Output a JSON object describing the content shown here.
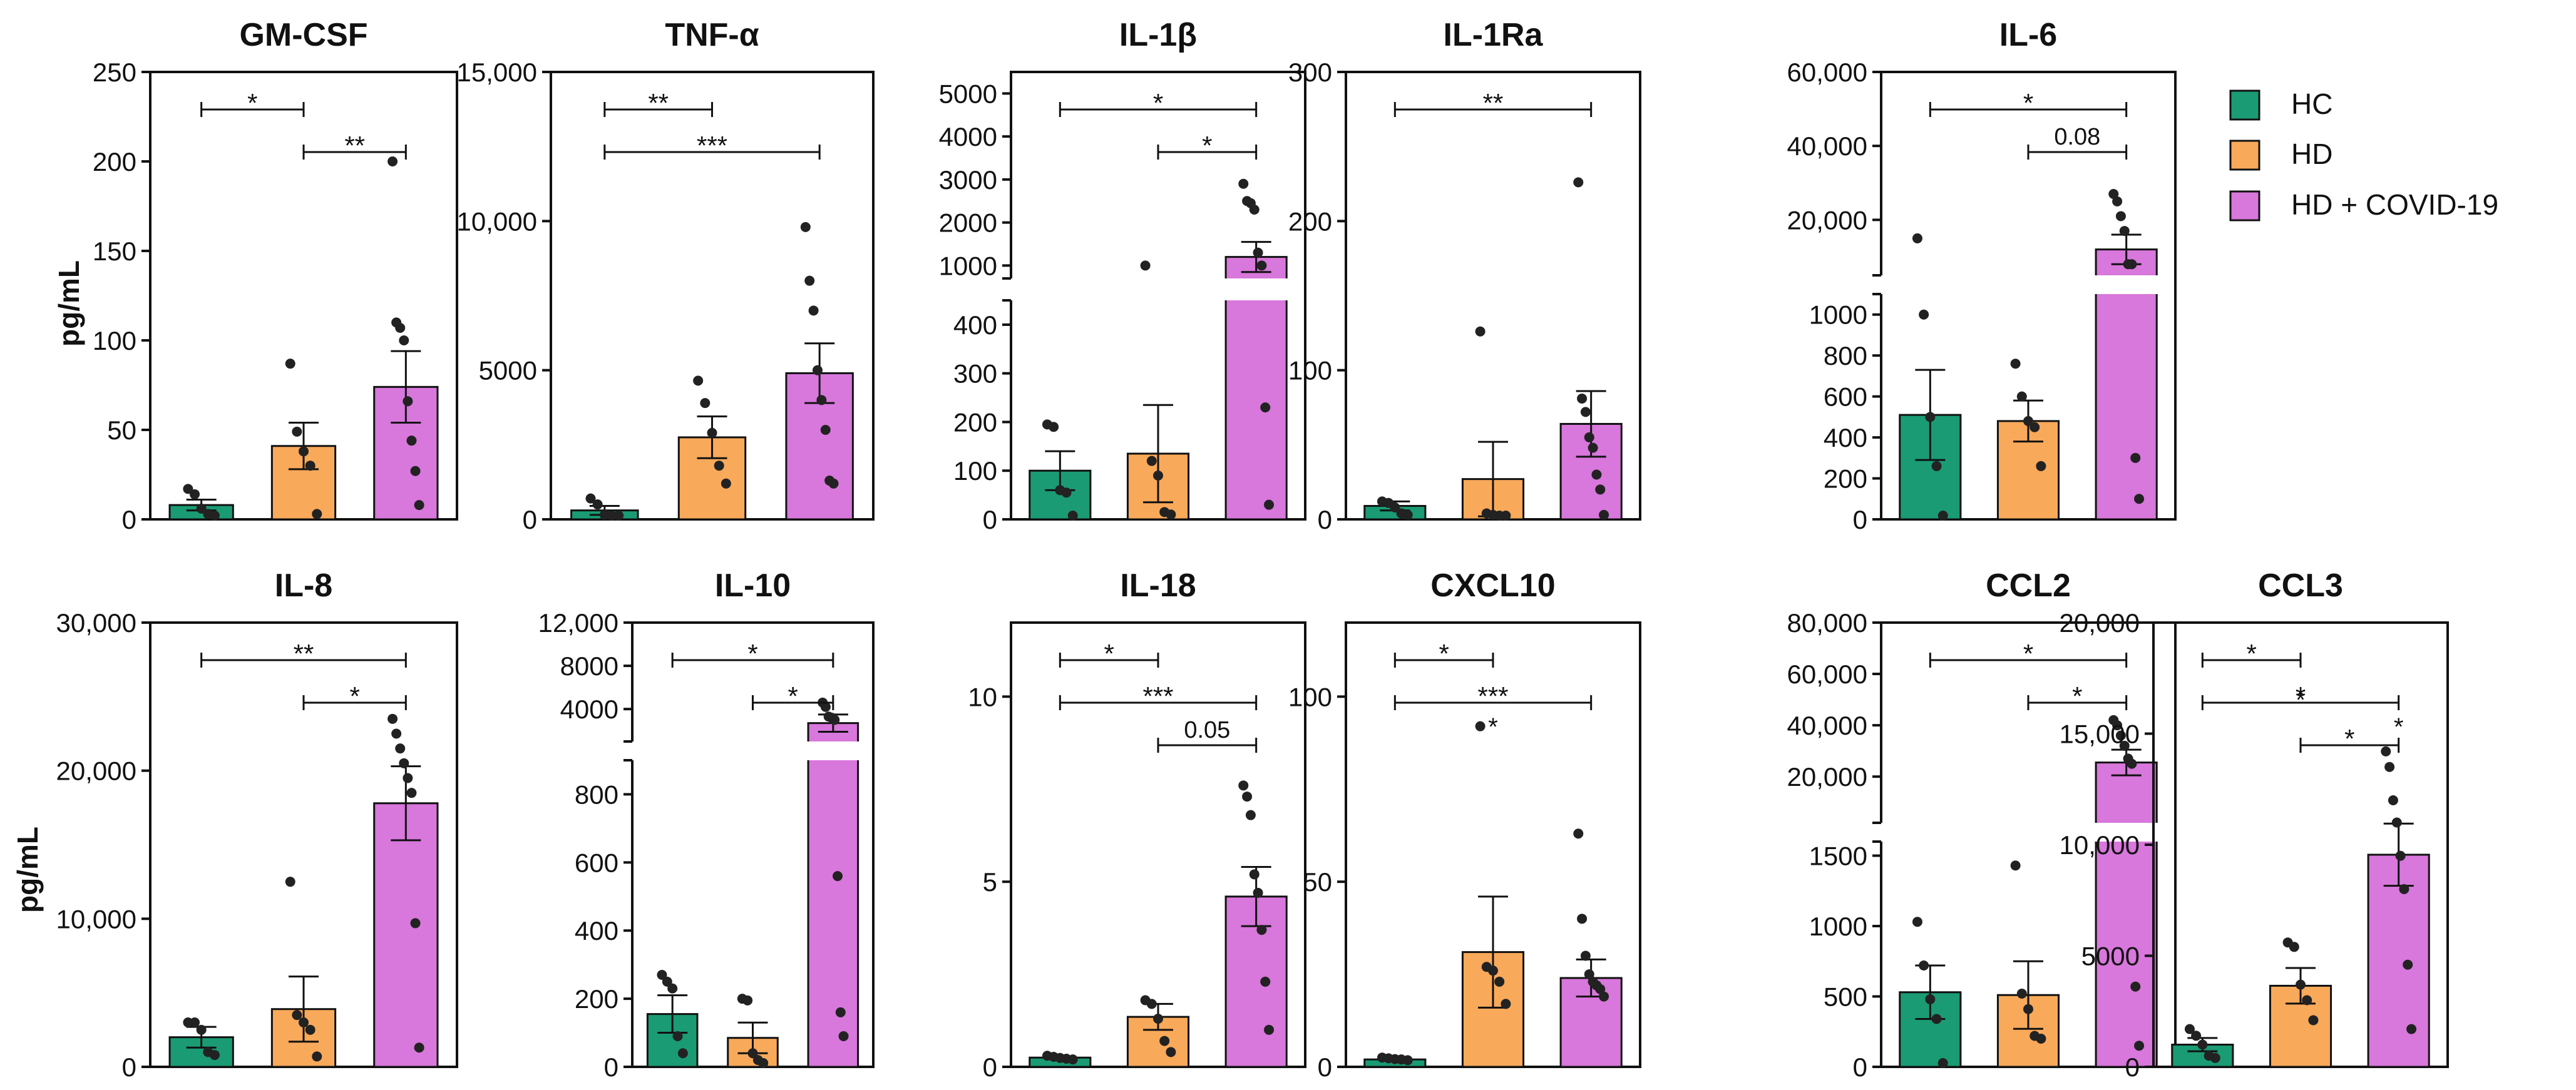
{
  "figure": {
    "ylabel": "pg/mL",
    "legend": {
      "placement": "top-right",
      "items": [
        {
          "label": "HC",
          "color": "#1a9b74"
        },
        {
          "label": "HD",
          "color": "#f9a95a"
        },
        {
          "label": "HD + COVID-19",
          "color": "#d877dc"
        }
      ]
    }
  },
  "chart_data": [
    {
      "type": "bar",
      "title": "GM-CSF",
      "categories": [
        "HC",
        "HD",
        "HD + COVID-19"
      ],
      "ylim": [
        0,
        250
      ],
      "ticks": [
        "0",
        "50",
        "100",
        "150",
        "200",
        "250"
      ],
      "series": [
        {
          "mean": 8,
          "sem": 3,
          "points": [
            17,
            14,
            6,
            3,
            2
          ]
        },
        {
          "mean": 41,
          "sem": 13,
          "points": [
            87,
            49,
            38,
            30,
            3
          ]
        },
        {
          "mean": 74,
          "sem": 20,
          "points": [
            200,
            110,
            107,
            100,
            66,
            44,
            27,
            8
          ]
        }
      ],
      "annotations": [
        {
          "from": 0,
          "to": 1,
          "label": "*"
        },
        {
          "from": 1,
          "to": 2,
          "label": "**"
        }
      ]
    },
    {
      "type": "bar",
      "title": "TNF-α",
      "categories": [
        "HC",
        "HD",
        "HD + COVID-19"
      ],
      "ylim": [
        0,
        15000
      ],
      "ticks": [
        "0",
        "5000",
        "10,000",
        "15,000"
      ],
      "series": [
        {
          "mean": 300,
          "sem": 150,
          "points": [
            700,
            500,
            150,
            100,
            50
          ]
        },
        {
          "mean": 2750,
          "sem": 700,
          "points": [
            4650,
            3900,
            2900,
            1800,
            1200
          ]
        },
        {
          "mean": 4900,
          "sem": 1000,
          "points": [
            9800,
            8000,
            7000,
            5000,
            4000,
            3000,
            1300,
            1200
          ]
        }
      ],
      "annotations": [
        {
          "from": 0,
          "to": 1,
          "label": "**"
        },
        {
          "from": 0,
          "to": 2,
          "label": "***"
        }
      ]
    },
    {
      "type": "bar",
      "title": "IL-1β",
      "categories": [
        "HC",
        "HD",
        "HD + COVID-19"
      ],
      "axis_break": {
        "low_max": 450,
        "high_min": 700,
        "high_max": 5500
      },
      "ticks": [
        "0",
        "100",
        "200",
        "300",
        "400",
        "1000",
        "2000",
        "3000",
        "4000",
        "5000"
      ],
      "series": [
        {
          "mean": 100,
          "sem": 40,
          "points": [
            195,
            190,
            60,
            55,
            5
          ]
        },
        {
          "mean": 135,
          "sem": 100,
          "points": [
            1000,
            120,
            90,
            15,
            10
          ]
        },
        {
          "mean": 1200,
          "sem": 350,
          "points": [
            2900,
            2500,
            2450,
            2300,
            1300,
            1000,
            230,
            30
          ]
        }
      ],
      "annotations": [
        {
          "from": 0,
          "to": 2,
          "label": "*"
        },
        {
          "from": 1,
          "to": 2,
          "label": "*"
        }
      ]
    },
    {
      "type": "bar",
      "title": "IL-1Ra",
      "categories": [
        "HC",
        "HD",
        "HD + COVID-19"
      ],
      "ylim": [
        0,
        300
      ],
      "ticks": [
        "0",
        "100",
        "200",
        "300"
      ],
      "series": [
        {
          "mean": 9,
          "sem": 3,
          "points": [
            12,
            11,
            8,
            4,
            3
          ]
        },
        {
          "mean": 27,
          "sem": 25,
          "points": [
            126,
            4,
            3,
            2,
            1
          ]
        },
        {
          "mean": 64,
          "sem": 22,
          "points": [
            226,
            81,
            72,
            55,
            48,
            30,
            20,
            3
          ]
        }
      ],
      "annotations": [
        {
          "from": 0,
          "to": 2,
          "label": "**"
        }
      ]
    },
    {
      "type": "bar",
      "title": "IL-6",
      "categories": [
        "HC",
        "HD",
        "HD + COVID-19"
      ],
      "axis_break": {
        "low_max": 1100,
        "high_min": 5000,
        "high_max": 60000
      },
      "ticks": [
        "0",
        "200",
        "400",
        "600",
        "800",
        "1000",
        "20,000",
        "40,000",
        "60,000"
      ],
      "series": [
        {
          "mean": 510,
          "sem": 220,
          "points": [
            15000,
            1000,
            500,
            260,
            10
          ]
        },
        {
          "mean": 480,
          "sem": 100,
          "points": [
            760,
            600,
            480,
            450,
            260
          ]
        },
        {
          "mean": 12000,
          "sem": 4000,
          "points": [
            27000,
            25000,
            21000,
            17000,
            8000,
            8000,
            300,
            100
          ]
        }
      ],
      "annotations": [
        {
          "from": 0,
          "to": 2,
          "label": "*"
        },
        {
          "from": 1,
          "to": 2,
          "label": "0.08"
        }
      ]
    },
    {
      "type": "bar",
      "title": "IL-8",
      "categories": [
        "HC",
        "HD",
        "HD + COVID-19"
      ],
      "ylim": [
        0,
        30000
      ],
      "ticks": [
        "0",
        "10,000",
        "20,000",
        "30,000"
      ],
      "series": [
        {
          "mean": 2000,
          "sem": 700,
          "points": [
            3000,
            3000,
            2500,
            1000,
            800
          ]
        },
        {
          "mean": 3900,
          "sem": 2200,
          "points": [
            12500,
            3500,
            3000,
            2500,
            700
          ]
        },
        {
          "mean": 17800,
          "sem": 2500,
          "points": [
            23500,
            22500,
            21500,
            20500,
            19500,
            18500,
            9700,
            1300
          ]
        }
      ],
      "annotations": [
        {
          "from": 0,
          "to": 2,
          "label": "**"
        },
        {
          "from": 1,
          "to": 2,
          "label": "*"
        }
      ]
    },
    {
      "type": "bar",
      "title": "IL-10",
      "categories": [
        "HC",
        "HD",
        "HD + COVID-19"
      ],
      "axis_break": {
        "low_max": 900,
        "high_min": 1000,
        "high_max": 12000
      },
      "ticks": [
        "0",
        "200",
        "400",
        "600",
        "800",
        "4000",
        "8000",
        "12,000"
      ],
      "series": [
        {
          "mean": 155,
          "sem": 55,
          "points": [
            270,
            250,
            230,
            90,
            40
          ]
        },
        {
          "mean": 85,
          "sem": 45,
          "points": [
            200,
            195,
            40,
            20,
            10
          ]
        },
        {
          "mean": 2700,
          "sem": 800,
          "points": [
            4600,
            4200,
            3300,
            3200,
            3000,
            560,
            160,
            90
          ]
        }
      ],
      "annotations": [
        {
          "from": 0,
          "to": 2,
          "label": "*"
        },
        {
          "from": 1,
          "to": 2,
          "label": "*"
        }
      ]
    },
    {
      "type": "bar",
      "title": "IL-18",
      "categories": [
        "HC",
        "HD",
        "HD + COVID-19"
      ],
      "ylim": [
        0,
        12
      ],
      "ticks": [
        "0",
        "5",
        "10"
      ],
      "series": [
        {
          "mean": 0.25,
          "sem": 0.03,
          "points": [
            0.3,
            0.27,
            0.24,
            0.22,
            0.2
          ]
        },
        {
          "mean": 1.35,
          "sem": 0.35,
          "points": [
            1.8,
            1.7,
            1.3,
            0.7,
            0.4
          ]
        },
        {
          "mean": 4.6,
          "sem": 0.8,
          "points": [
            7.6,
            7.3,
            6.8,
            5.2,
            4.7,
            3.7,
            2.3,
            1.0
          ]
        }
      ],
      "annotations": [
        {
          "from": 0,
          "to": 1,
          "label": "*"
        },
        {
          "from": 0,
          "to": 2,
          "label": "***"
        },
        {
          "from": 1,
          "to": 2,
          "label": "0.05"
        }
      ]
    },
    {
      "type": "bar",
      "title": "CXCL10",
      "categories": [
        "HC",
        "HD",
        "HD + COVID-19"
      ],
      "ylim": [
        0,
        120
      ],
      "ticks": [
        "0",
        "50",
        "100"
      ],
      "series": [
        {
          "mean": 2,
          "sem": 0.3,
          "points": [
            2.5,
            2.3,
            2.1,
            2.0,
            1.8
          ]
        },
        {
          "mean": 31,
          "sem": 15,
          "points": [
            92,
            27,
            26,
            23,
            17
          ]
        },
        {
          "mean": 24,
          "sem": 5,
          "points": [
            63,
            40,
            30,
            25,
            23,
            22,
            21,
            19
          ]
        }
      ],
      "extra_marks": [
        {
          "series": 1,
          "label": "*",
          "y": 93
        }
      ],
      "annotations": [
        {
          "from": 0,
          "to": 1,
          "label": "*"
        },
        {
          "from": 0,
          "to": 2,
          "label": "***"
        }
      ]
    },
    {
      "type": "bar",
      "title": "CCL2",
      "categories": [
        "HC",
        "HD",
        "HD + COVID-19"
      ],
      "axis_break": {
        "low_max": 1600,
        "high_min": 2000,
        "high_max": 80000
      },
      "ticks": [
        "0",
        "500",
        "1000",
        "1500",
        "20,000",
        "40,000",
        "60,000",
        "80,000"
      ],
      "series": [
        {
          "mean": 530,
          "sem": 190,
          "points": [
            1030,
            720,
            480,
            340,
            10
          ]
        },
        {
          "mean": 510,
          "sem": 240,
          "points": [
            1430,
            520,
            410,
            220,
            200
          ]
        },
        {
          "mean": 25500,
          "sem": 5000,
          "points": [
            42000,
            40000,
            36000,
            32000,
            27000,
            25000,
            570,
            150
          ]
        }
      ],
      "annotations": [
        {
          "from": 0,
          "to": 2,
          "label": "*"
        },
        {
          "from": 1,
          "to": 2,
          "label": "*"
        }
      ]
    },
    {
      "type": "bar",
      "title": "CCL3",
      "categories": [
        "HC",
        "HD",
        "HD + COVID-19"
      ],
      "ylim": [
        0,
        20000
      ],
      "ticks": [
        "0",
        "5000",
        "10,000",
        "15,000",
        "20,000"
      ],
      "series": [
        {
          "mean": 1000,
          "sem": 300,
          "points": [
            1700,
            1400,
            1000,
            500,
            400
          ]
        },
        {
          "mean": 3650,
          "sem": 800,
          "points": [
            5600,
            5400,
            3700,
            3000,
            2100
          ]
        },
        {
          "mean": 9550,
          "sem": 1400,
          "points": [
            14200,
            13500,
            12000,
            11000,
            9500,
            8000,
            4600,
            1700
          ]
        }
      ],
      "extra_marks": [
        {
          "series": 1,
          "label": "*",
          "y": 16700
        },
        {
          "series": 2,
          "label": "*",
          "y": 15500
        }
      ],
      "annotations": [
        {
          "from": 0,
          "to": 1,
          "label": "*"
        },
        {
          "from": 0,
          "to": 2,
          "label": "*"
        },
        {
          "from": 1,
          "to": 2,
          "label": "*"
        }
      ]
    }
  ]
}
